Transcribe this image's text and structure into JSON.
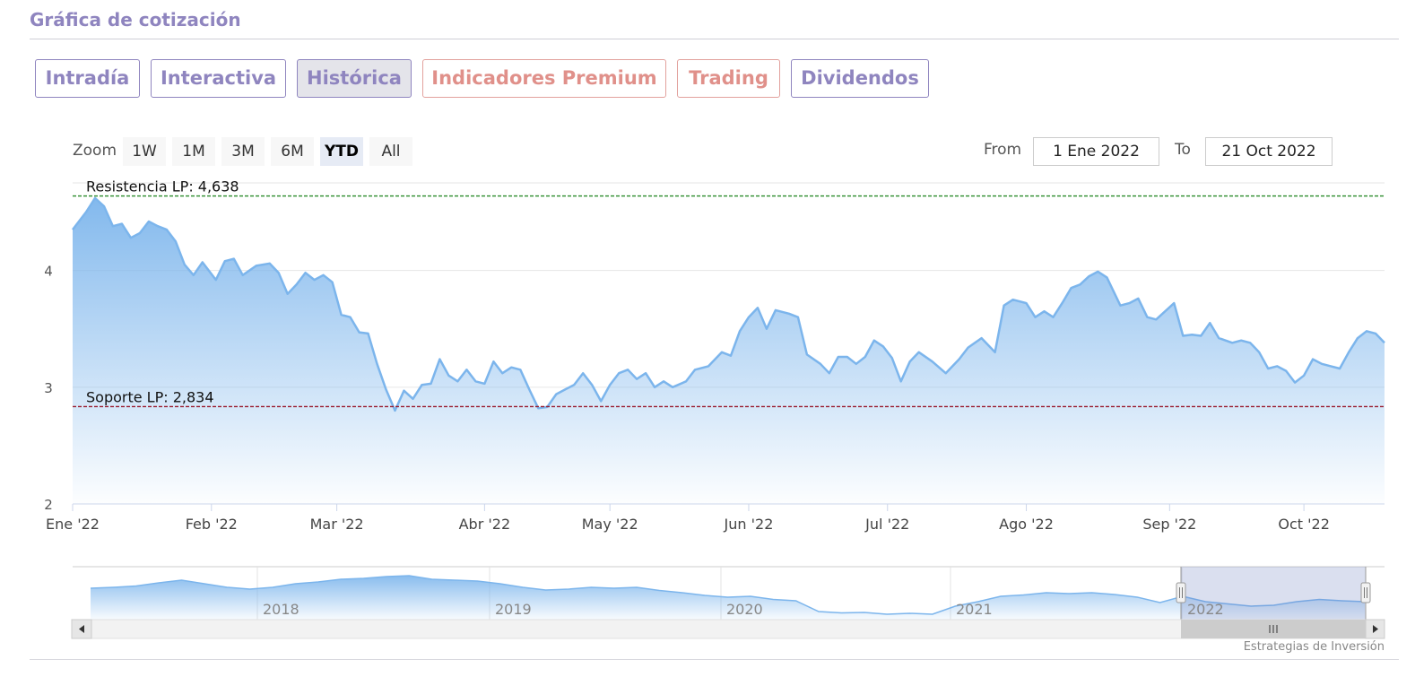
{
  "header": {
    "title": "Gráfica de cotización"
  },
  "tabs": [
    {
      "label": "Intradía",
      "active": false,
      "premium": false
    },
    {
      "label": "Interactiva",
      "active": false,
      "premium": false
    },
    {
      "label": "Histórica",
      "active": true,
      "premium": false
    },
    {
      "label": "Indicadores Premium",
      "active": false,
      "premium": true
    },
    {
      "label": "Trading",
      "active": false,
      "premium": true
    },
    {
      "label": "Dividendos",
      "active": false,
      "premium": false
    }
  ],
  "zoom": {
    "label": "Zoom",
    "buttons": [
      "1W",
      "1M",
      "3M",
      "6M",
      "YTD",
      "All"
    ],
    "selected": "YTD"
  },
  "range": {
    "from_label": "From",
    "from_value": "1 Ene 2022",
    "to_label": "To",
    "to_value": "21 Oct 2022"
  },
  "colors": {
    "accent": "#8f85bf",
    "premium": "#e0908a",
    "line": "#7cb5ec",
    "resistance": "#2a8a2a",
    "support": "#9a1b2e"
  },
  "chart_data": {
    "type": "area",
    "x_range": [
      "2022-01-01",
      "2022-10-21"
    ],
    "ylim": [
      2,
      4.75
    ],
    "yticks": [
      2,
      3,
      4
    ],
    "xticks": [
      {
        "date": "2022-01-01",
        "label": "Ene '22"
      },
      {
        "date": "2022-02-01",
        "label": "Feb '22"
      },
      {
        "date": "2022-03-01",
        "label": "Mar '22"
      },
      {
        "date": "2022-04-03",
        "label": "Abr '22"
      },
      {
        "date": "2022-05-01",
        "label": "May '22"
      },
      {
        "date": "2022-06-01",
        "label": "Jun '22"
      },
      {
        "date": "2022-07-02",
        "label": "Jul '22"
      },
      {
        "date": "2022-08-02",
        "label": "Ago '22"
      },
      {
        "date": "2022-09-03",
        "label": "Sep '22"
      },
      {
        "date": "2022-10-03",
        "label": "Oct '22"
      }
    ],
    "series": [
      {
        "points": [
          [
            "2022-01-01",
            4.35
          ],
          [
            "2022-01-04",
            4.5
          ],
          [
            "2022-01-06",
            4.62
          ],
          [
            "2022-01-08",
            4.55
          ],
          [
            "2022-01-10",
            4.38
          ],
          [
            "2022-01-12",
            4.4
          ],
          [
            "2022-01-14",
            4.28
          ],
          [
            "2022-01-16",
            4.32
          ],
          [
            "2022-01-18",
            4.42
          ],
          [
            "2022-01-20",
            4.38
          ],
          [
            "2022-01-22",
            4.35
          ],
          [
            "2022-01-24",
            4.25
          ],
          [
            "2022-01-26",
            4.05
          ],
          [
            "2022-01-28",
            3.96
          ],
          [
            "2022-01-30",
            4.07
          ],
          [
            "2022-02-02",
            3.92
          ],
          [
            "2022-02-04",
            4.08
          ],
          [
            "2022-02-06",
            4.1
          ],
          [
            "2022-02-08",
            3.96
          ],
          [
            "2022-02-11",
            4.04
          ],
          [
            "2022-02-14",
            4.06
          ],
          [
            "2022-02-16",
            3.98
          ],
          [
            "2022-02-18",
            3.8
          ],
          [
            "2022-02-20",
            3.88
          ],
          [
            "2022-02-22",
            3.98
          ],
          [
            "2022-02-24",
            3.92
          ],
          [
            "2022-02-26",
            3.96
          ],
          [
            "2022-02-28",
            3.9
          ],
          [
            "2022-03-02",
            3.62
          ],
          [
            "2022-03-04",
            3.6
          ],
          [
            "2022-03-06",
            3.47
          ],
          [
            "2022-03-08",
            3.46
          ],
          [
            "2022-03-10",
            3.2
          ],
          [
            "2022-03-12",
            2.98
          ],
          [
            "2022-03-14",
            2.8
          ],
          [
            "2022-03-16",
            2.97
          ],
          [
            "2022-03-18",
            2.9
          ],
          [
            "2022-03-20",
            3.02
          ],
          [
            "2022-03-22",
            3.03
          ],
          [
            "2022-03-24",
            3.24
          ],
          [
            "2022-03-26",
            3.1
          ],
          [
            "2022-03-28",
            3.05
          ],
          [
            "2022-03-30",
            3.15
          ],
          [
            "2022-04-01",
            3.05
          ],
          [
            "2022-04-03",
            3.03
          ],
          [
            "2022-04-05",
            3.22
          ],
          [
            "2022-04-07",
            3.12
          ],
          [
            "2022-04-09",
            3.17
          ],
          [
            "2022-04-11",
            3.15
          ],
          [
            "2022-04-13",
            2.98
          ],
          [
            "2022-04-15",
            2.82
          ],
          [
            "2022-04-17",
            2.83
          ],
          [
            "2022-04-19",
            2.94
          ],
          [
            "2022-04-21",
            2.98
          ],
          [
            "2022-04-23",
            3.02
          ],
          [
            "2022-04-25",
            3.12
          ],
          [
            "2022-04-27",
            3.02
          ],
          [
            "2022-04-29",
            2.88
          ],
          [
            "2022-05-01",
            3.02
          ],
          [
            "2022-05-03",
            3.12
          ],
          [
            "2022-05-05",
            3.15
          ],
          [
            "2022-05-07",
            3.07
          ],
          [
            "2022-05-09",
            3.12
          ],
          [
            "2022-05-11",
            3.0
          ],
          [
            "2022-05-13",
            3.05
          ],
          [
            "2022-05-15",
            3.0
          ],
          [
            "2022-05-18",
            3.05
          ],
          [
            "2022-05-20",
            3.15
          ],
          [
            "2022-05-23",
            3.18
          ],
          [
            "2022-05-26",
            3.3
          ],
          [
            "2022-05-28",
            3.27
          ],
          [
            "2022-05-30",
            3.48
          ],
          [
            "2022-06-01",
            3.6
          ],
          [
            "2022-06-03",
            3.68
          ],
          [
            "2022-06-05",
            3.5
          ],
          [
            "2022-06-07",
            3.66
          ],
          [
            "2022-06-10",
            3.63
          ],
          [
            "2022-06-12",
            3.6
          ],
          [
            "2022-06-14",
            3.28
          ],
          [
            "2022-06-17",
            3.2
          ],
          [
            "2022-06-19",
            3.12
          ],
          [
            "2022-06-21",
            3.26
          ],
          [
            "2022-06-23",
            3.26
          ],
          [
            "2022-06-25",
            3.2
          ],
          [
            "2022-06-27",
            3.26
          ],
          [
            "2022-06-29",
            3.4
          ],
          [
            "2022-07-01",
            3.35
          ],
          [
            "2022-07-03",
            3.25
          ],
          [
            "2022-07-05",
            3.05
          ],
          [
            "2022-07-07",
            3.22
          ],
          [
            "2022-07-09",
            3.3
          ],
          [
            "2022-07-12",
            3.22
          ],
          [
            "2022-07-15",
            3.12
          ],
          [
            "2022-07-18",
            3.24
          ],
          [
            "2022-07-20",
            3.34
          ],
          [
            "2022-07-23",
            3.42
          ],
          [
            "2022-07-26",
            3.3
          ],
          [
            "2022-07-28",
            3.7
          ],
          [
            "2022-07-30",
            3.75
          ],
          [
            "2022-08-02",
            3.72
          ],
          [
            "2022-08-04",
            3.6
          ],
          [
            "2022-08-06",
            3.65
          ],
          [
            "2022-08-08",
            3.6
          ],
          [
            "2022-08-10",
            3.72
          ],
          [
            "2022-08-12",
            3.85
          ],
          [
            "2022-08-14",
            3.88
          ],
          [
            "2022-08-16",
            3.95
          ],
          [
            "2022-08-18",
            3.99
          ],
          [
            "2022-08-20",
            3.94
          ],
          [
            "2022-08-23",
            3.7
          ],
          [
            "2022-08-25",
            3.72
          ],
          [
            "2022-08-27",
            3.76
          ],
          [
            "2022-08-29",
            3.6
          ],
          [
            "2022-08-31",
            3.58
          ],
          [
            "2022-09-02",
            3.65
          ],
          [
            "2022-09-04",
            3.72
          ],
          [
            "2022-09-06",
            3.44
          ],
          [
            "2022-09-08",
            3.45
          ],
          [
            "2022-09-10",
            3.44
          ],
          [
            "2022-09-12",
            3.55
          ],
          [
            "2022-09-14",
            3.42
          ],
          [
            "2022-09-17",
            3.38
          ],
          [
            "2022-09-19",
            3.4
          ],
          [
            "2022-09-21",
            3.38
          ],
          [
            "2022-09-23",
            3.3
          ],
          [
            "2022-09-25",
            3.16
          ],
          [
            "2022-09-27",
            3.18
          ],
          [
            "2022-09-29",
            3.14
          ],
          [
            "2022-10-01",
            3.04
          ],
          [
            "2022-10-03",
            3.1
          ],
          [
            "2022-10-05",
            3.24
          ],
          [
            "2022-10-07",
            3.2
          ],
          [
            "2022-10-09",
            3.18
          ],
          [
            "2022-10-11",
            3.16
          ],
          [
            "2022-10-13",
            3.3
          ],
          [
            "2022-10-15",
            3.42
          ],
          [
            "2022-10-17",
            3.48
          ],
          [
            "2022-10-19",
            3.46
          ],
          [
            "2022-10-21",
            3.38
          ]
        ]
      }
    ],
    "annotations": [
      {
        "label": "Resistencia LP: 4,638",
        "value": 4.638,
        "style": "dashed",
        "color": "#2a8a2a"
      },
      {
        "label": "Soporte LP: 2,834",
        "value": 2.834,
        "style": "dashed",
        "color": "#9a1b2e"
      }
    ]
  },
  "navigator": {
    "year_labels": [
      "2018",
      "2019",
      "2020",
      "2021",
      "2022"
    ],
    "levels": [
      0.6,
      0.62,
      0.65,
      0.72,
      0.78,
      0.7,
      0.62,
      0.58,
      0.62,
      0.7,
      0.74,
      0.8,
      0.82,
      0.86,
      0.88,
      0.8,
      0.78,
      0.76,
      0.7,
      0.62,
      0.56,
      0.58,
      0.62,
      0.6,
      0.62,
      0.55,
      0.5,
      0.44,
      0.4,
      0.42,
      0.35,
      0.32,
      0.08,
      0.05,
      0.06,
      0.02,
      0.04,
      0.02,
      0.2,
      0.3,
      0.42,
      0.45,
      0.5,
      0.48,
      0.5,
      0.46,
      0.4,
      0.28,
      0.42,
      0.3,
      0.25,
      0.2,
      0.22,
      0.3,
      0.35,
      0.32,
      0.3
    ],
    "selection": [
      "2022-01-01",
      "2022-10-21"
    ]
  },
  "footer": {
    "credit": "Estrategias de Inversión"
  }
}
